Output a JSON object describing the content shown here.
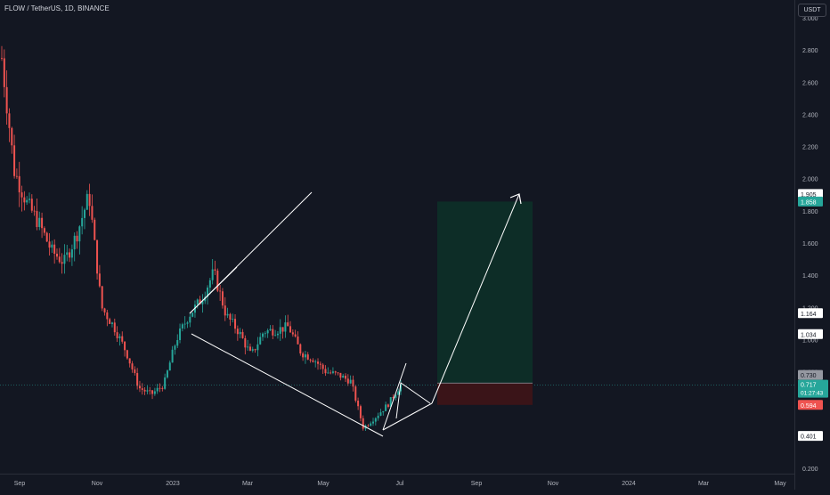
{
  "header": {
    "symbol_title": "FLOW / TetherUS, 1D, BINANCE",
    "currency": "USDT"
  },
  "colors": {
    "background": "#131722",
    "up": "#26a69a",
    "down": "#ef5350",
    "drawing": "#ffffff",
    "profit_zone": "#0d2d27",
    "loss_zone": "#3a1418",
    "label_dark": "#ffffff",
    "current_price_label": "#26a69a",
    "stop_label": "#ef5350",
    "target_label": "#26a69a"
  },
  "chart_data": {
    "type": "candlestick",
    "x_ticks": [
      "Sep",
      "Nov",
      "2023",
      "Mar",
      "May",
      "Jul",
      "Sep",
      "Nov",
      "2024",
      "Mar",
      "May"
    ],
    "y_ticks": [
      "3.000",
      "2.800",
      "2.600",
      "2.400",
      "2.200",
      "2.000",
      "1.800",
      "1.600",
      "1.400",
      "1.200",
      "1.000",
      "0.800",
      "0.600",
      "0.400",
      "0.200"
    ],
    "ylim": [
      0.2,
      3.0
    ],
    "series": [
      {
        "name": "FLOW/USDT",
        "points": [
          [
            "Aug 2022",
            2.75
          ],
          [
            "Late Aug 2022",
            2.05
          ],
          [
            "Sep 2022",
            1.85
          ],
          [
            "Late Sep 2022",
            1.72
          ],
          [
            "Oct 2022",
            1.55
          ],
          [
            "Mid Oct 2022",
            1.48
          ],
          [
            "Late Oct 2022",
            1.65
          ],
          [
            "Early Nov 2022",
            1.9
          ],
          [
            "Mid Nov 2022",
            1.2
          ],
          [
            "Late Nov 2022",
            1.08
          ],
          [
            "Dec 2022",
            0.92
          ],
          [
            "Mid Dec 2022",
            0.7
          ],
          [
            "Late Dec 2022",
            0.66
          ],
          [
            "Jan 2023",
            0.72
          ],
          [
            "Mid Jan 2023",
            1.0
          ],
          [
            "Late Jan 2023",
            1.15
          ],
          [
            "Feb 2023",
            1.25
          ],
          [
            "Mid Feb 2023",
            1.42
          ],
          [
            "Late Feb 2023",
            1.15
          ],
          [
            "Mar 2023",
            1.05
          ],
          [
            "Mid Mar 2023",
            0.9
          ],
          [
            "Late Mar 2023",
            1.05
          ],
          [
            "Apr 2023",
            1.06
          ],
          [
            "Mid Apr 2023",
            1.08
          ],
          [
            "Late Apr 2023",
            0.92
          ],
          [
            "May 2023",
            0.88
          ],
          [
            "Mid May 2023",
            0.8
          ],
          [
            "Late May 2023",
            0.78
          ],
          [
            "Jun 2023",
            0.74
          ],
          [
            "Mid Jun 2023",
            0.45
          ],
          [
            "Late Jun 2023",
            0.52
          ],
          [
            "Jul 2023",
            0.6
          ],
          [
            "Early Jul 2023",
            0.72
          ]
        ]
      }
    ],
    "price_labels": {
      "target_top": "1.905",
      "target": "1.858",
      "level_high": "1.164",
      "level_mid": "1.034",
      "entry": "0.730",
      "current": "0.717",
      "countdown": "01:27:43",
      "stop": "0.594",
      "level_low": "0.401"
    },
    "position": {
      "entry": 0.73,
      "target": 1.858,
      "stop": 0.594
    }
  }
}
